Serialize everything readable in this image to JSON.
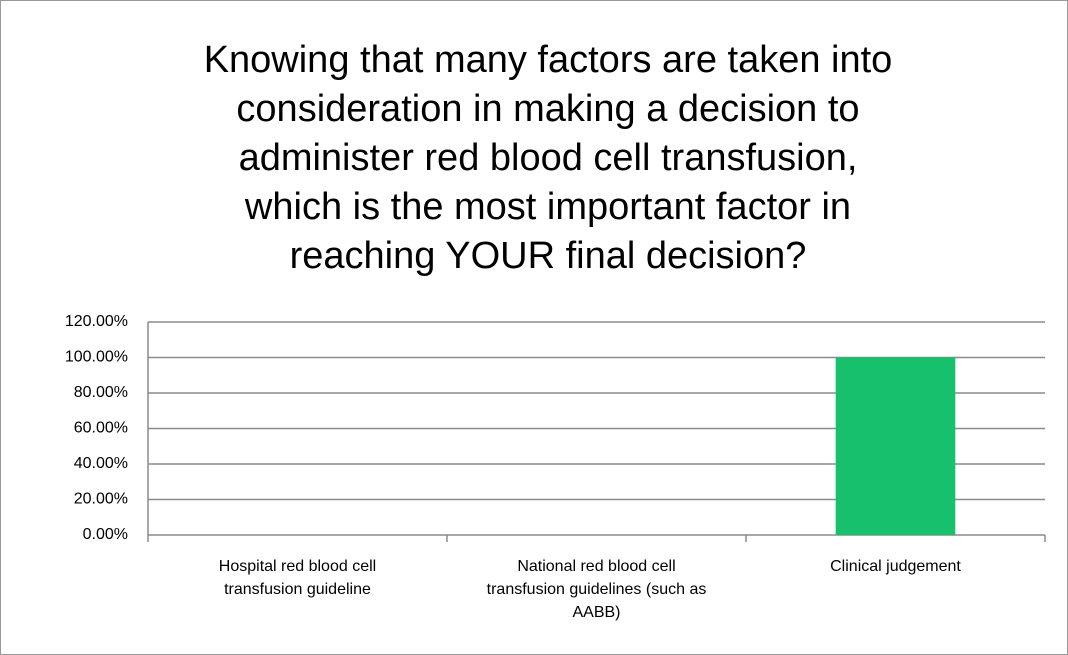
{
  "chart_data": {
    "type": "bar",
    "title": [
      "Knowing that many factors are taken into",
      "consideration in making a decision to",
      "administer red blood cell transfusion,",
      "which is the most important factor in",
      "reaching YOUR final decision?"
    ],
    "categories": [
      "Hospital red blood cell transfusion guideline",
      "National red blood cell transfusion guidelines (such as AABB)",
      "Clinical judgement"
    ],
    "values": [
      0,
      0,
      100
    ],
    "color": "#17c16b",
    "ylim": [
      0,
      120
    ],
    "yticks": [
      {
        "value": 0,
        "label": "0.00%"
      },
      {
        "value": 20,
        "label": "20.00%"
      },
      {
        "value": 40,
        "label": "40.00%"
      },
      {
        "value": 60,
        "label": "60.00%"
      },
      {
        "value": 80,
        "label": "80.00%"
      },
      {
        "value": 100,
        "label": "100.00%"
      },
      {
        "value": 120,
        "label": "120.00%"
      }
    ],
    "grid": true
  }
}
